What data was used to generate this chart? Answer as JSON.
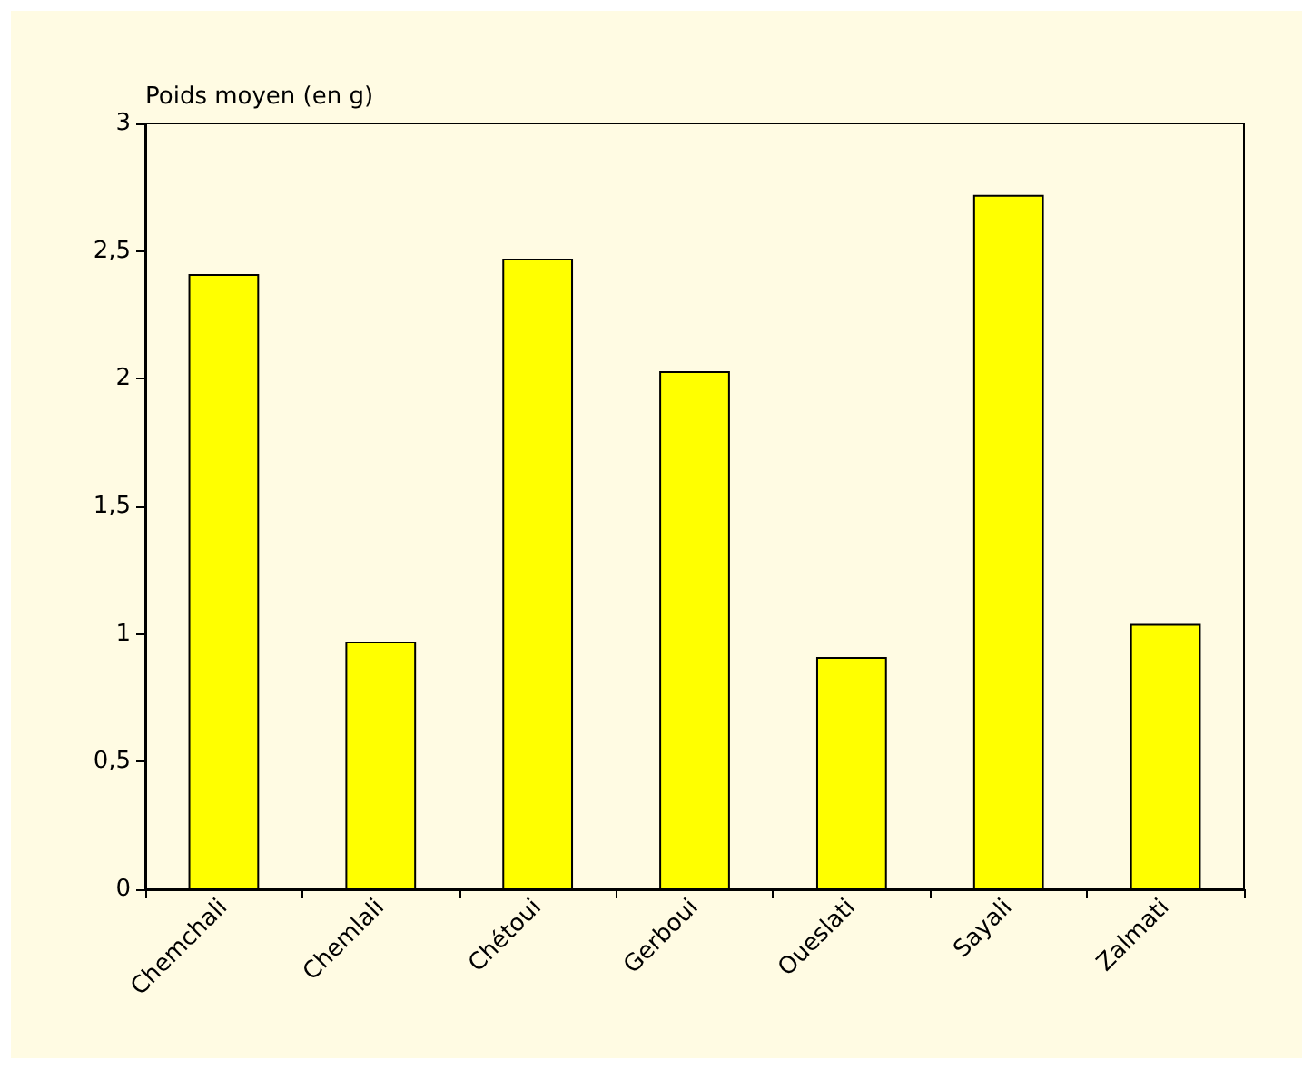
{
  "chart_data": {
    "type": "bar",
    "ylabel": "Poids moyen (en g)",
    "categories": [
      "Chemchali",
      "Chemlali",
      "Chétoui",
      "Gerboui",
      "Oueslati",
      "Sayali",
      "Zalmati"
    ],
    "values": [
      2.41,
      0.97,
      2.47,
      2.03,
      0.91,
      2.72,
      1.04
    ],
    "color": "#ffff00",
    "ylim": [
      0,
      3
    ],
    "yticks": [
      0,
      {
        "value": 0.5,
        "label": "0,5"
      },
      1,
      {
        "value": 1.5,
        "label": "1,5"
      },
      2,
      {
        "value": 2.5,
        "label": "2,5"
      },
      3
    ],
    "grid": false
  }
}
